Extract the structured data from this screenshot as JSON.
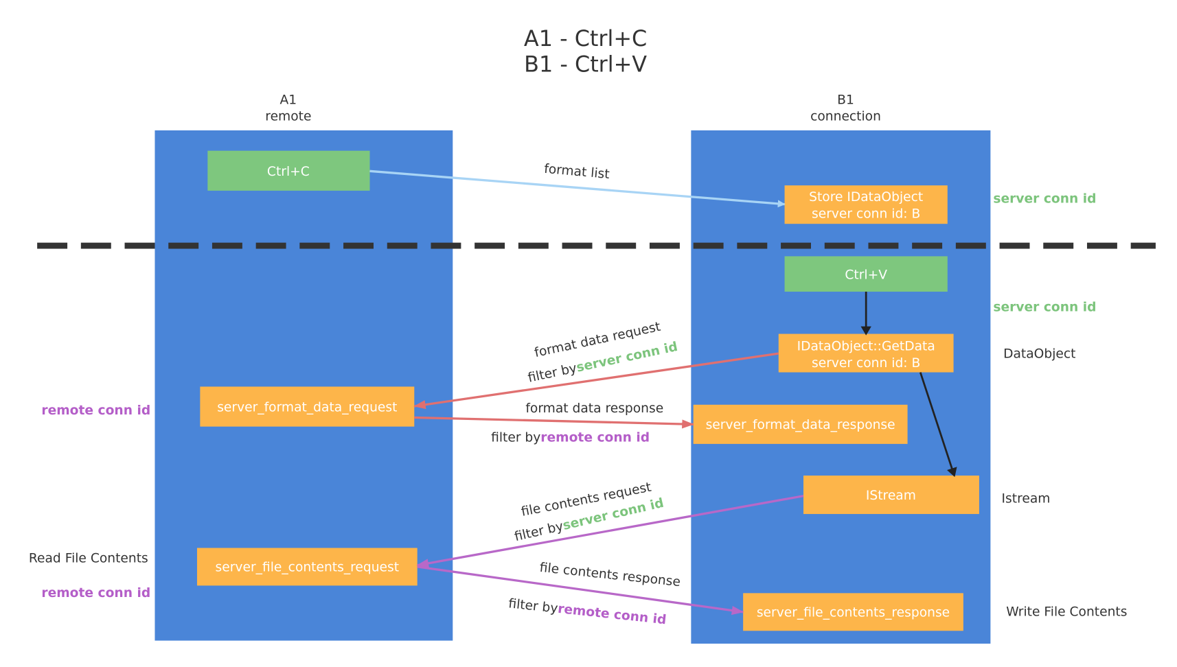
{
  "title": {
    "line1": "A1 - Ctrl+C",
    "line2": "B1 - Ctrl+V"
  },
  "lanes": {
    "a": {
      "name": "A1",
      "role": "remote"
    },
    "b": {
      "name": "B1",
      "role": "connection"
    }
  },
  "boxes": {
    "ctrl_c": "Ctrl+C",
    "store_line1": "Store IDataObject",
    "store_line2": "server conn id: B",
    "ctrl_v": "Ctrl+V",
    "getdata_line1": "IDataObject::GetData",
    "getdata_line2": "server conn id: B",
    "format_req": "server_format_data_request",
    "format_resp": "server_format_data_response",
    "istream": "IStream",
    "file_req": "server_file_contents_request",
    "file_resp": "server_file_contents_response"
  },
  "edges": {
    "format_list": "format list",
    "format_data_request": "format data request",
    "format_data_response": "format data response",
    "file_contents_request": "file contents request",
    "file_contents_response": "file contents response",
    "filter_by": "filter by",
    "server_conn_id": "server conn id",
    "remote_conn_id": "remote conn id"
  },
  "side_labels": {
    "server_conn_id_1": "server conn id",
    "server_conn_id_2": "server conn id",
    "data_object": "DataObject",
    "istream": "Istream",
    "write_file_contents": "Write File Contents",
    "remote_conn_id_1": "remote conn id",
    "read_file_contents": "Read File Contents",
    "remote_conn_id_2": "remote conn id"
  },
  "colors": {
    "lane": "#4a85d8",
    "orange_box": "#fdb54a",
    "green_box": "#7ec77e",
    "format_list_arrow": "#a8d4f5",
    "format_arrow": "#e07070",
    "file_arrow": "#b868c8",
    "server_conn_id": "#7cc47c",
    "remote_conn_id": "#b45ec8"
  }
}
